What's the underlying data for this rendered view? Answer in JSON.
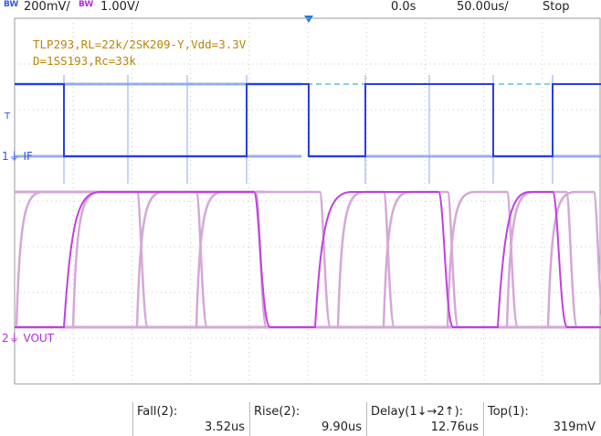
{
  "status_bar": {
    "ch1_bw": "BW",
    "ch1_scale": "200mV/",
    "ch2_bw": "BW",
    "ch2_scale": "1.00V/",
    "time_offset": "0.0s",
    "time_scale": "50.00us/",
    "run_state": "Stop"
  },
  "annotation": {
    "line1": "TLP293,RL=22k/2SK209-Y,Vdd=3.3V",
    "line2": "D=1SS193,Rc=33k"
  },
  "channels": {
    "ch1": {
      "number": "1",
      "label": "IF",
      "color": "#2a3fe0"
    },
    "ch2": {
      "number": "2",
      "label": "VOUT",
      "color": "#c040e0"
    },
    "ref_label": "T"
  },
  "measurements": [
    {
      "name": "Fall(2):",
      "value": "3.52us"
    },
    {
      "name": "Rise(2):",
      "value": "9.90us"
    },
    {
      "name": "Delay(1↓→2↑):",
      "value": "12.76us"
    },
    {
      "name": "Top(1):",
      "value": "319mV"
    }
  ],
  "colors": {
    "grid": "#c8c8c8",
    "ch1_trace": "#2a3fe0",
    "ch1_persist": "#8fa7e6",
    "ch2_trace": "#c040e0",
    "ch2_persist": "#d5a8d7",
    "trigger": "#1a7be0",
    "annotation": "#b8860b"
  }
}
